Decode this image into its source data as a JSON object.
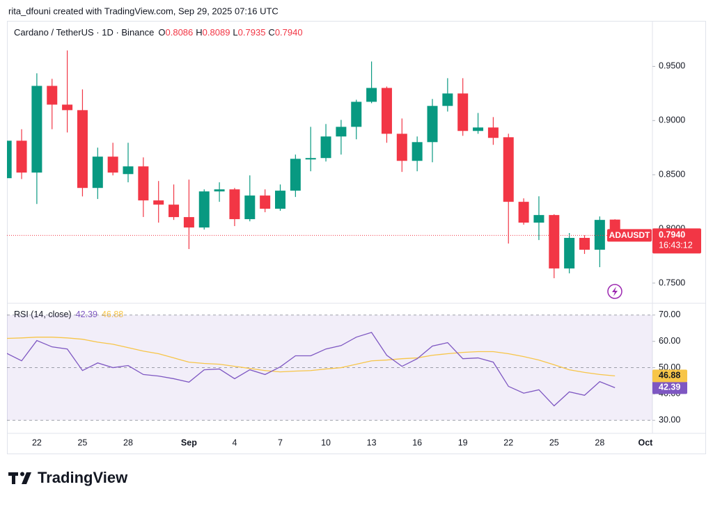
{
  "header": {
    "credit": "rita_dfouni created with TradingView.com, Sep 29, 2025 07:16 UTC",
    "symbol": "Cardano / TetherUS · 1D · Binance",
    "ohlc_keys": [
      "O",
      "H",
      "L",
      "C"
    ],
    "ohlc_labels": [
      "0.8086",
      "0.8089",
      "0.7935",
      "0.7940"
    ]
  },
  "chart_data": [
    {
      "type": "candlestick",
      "categories": [
        null,
        null,
        "22",
        null,
        null,
        "25",
        null,
        null,
        "28",
        null,
        null,
        null,
        "Sep",
        null,
        null,
        "4",
        null,
        null,
        "7",
        null,
        null,
        "10",
        null,
        null,
        "13",
        null,
        null,
        "16",
        null,
        null,
        "19",
        null,
        null,
        "22",
        null,
        null,
        "25",
        null,
        null,
        "28",
        null,
        null,
        "Oct"
      ],
      "open": [
        0.8468,
        0.8814,
        0.852,
        0.932,
        0.9147,
        0.9096,
        0.8378,
        0.8667,
        0.8506,
        0.8577,
        0.8263,
        0.8224,
        0.8109,
        0.8013,
        0.8346,
        0.8365,
        0.809,
        0.8308,
        0.8186,
        0.8353,
        0.8641,
        0.8654,
        0.8853,
        0.8942,
        0.9173,
        0.9301,
        0.8878,
        0.8628,
        0.8801,
        0.9135,
        0.925,
        0.8904,
        0.8936,
        0.8846,
        0.825,
        0.8058,
        0.8128,
        0.7635,
        0.7917,
        0.7808,
        0.8086,
        null,
        null
      ],
      "high": [
        0.885,
        0.892,
        0.9436,
        0.9385,
        0.9647,
        0.9288,
        0.875,
        0.8795,
        0.8795,
        0.866,
        0.8442,
        0.841,
        0.8455,
        0.8365,
        0.843,
        0.8378,
        0.8494,
        0.8365,
        0.841,
        0.8686,
        0.8942,
        0.8968,
        0.9006,
        0.9192,
        0.9545,
        0.9314,
        0.9019,
        0.8853,
        0.9199,
        0.9391,
        0.9391,
        0.907,
        0.9032,
        0.8878,
        0.8282,
        0.8301,
        0.8135,
        0.7962,
        0.7942,
        0.8115,
        0.8089,
        null,
        null
      ],
      "low": [
        0.845,
        0.846,
        0.823,
        0.892,
        0.889,
        0.83,
        0.8276,
        0.8494,
        0.843,
        0.811,
        0.8058,
        0.8083,
        0.7814,
        0.7994,
        0.825,
        0.8026,
        0.807,
        0.8154,
        0.8167,
        0.8295,
        0.8532,
        0.8622,
        0.8686,
        0.8827,
        0.916,
        0.8795,
        0.8526,
        0.8532,
        0.8615,
        0.9083,
        0.8859,
        0.8878,
        0.8776,
        0.7865,
        0.8039,
        0.7897,
        0.7545,
        0.759,
        0.7769,
        0.7647,
        0.7935,
        null,
        null
      ],
      "close": [
        0.8814,
        0.852,
        0.932,
        0.9147,
        0.9096,
        0.8378,
        0.8667,
        0.852,
        0.8577,
        0.8263,
        0.8224,
        0.8109,
        0.8013,
        0.8346,
        0.8365,
        0.809,
        0.8308,
        0.8186,
        0.8353,
        0.8647,
        0.8654,
        0.8853,
        0.8942,
        0.9173,
        0.9301,
        0.8878,
        0.8628,
        0.8801,
        0.9135,
        0.925,
        0.8904,
        0.8936,
        0.884,
        0.825,
        0.8058,
        0.8128,
        0.7635,
        0.7917,
        0.7808,
        0.8083,
        0.794,
        null,
        null
      ],
      "up_color": "#089981",
      "down_color": "#f23645",
      "ylim": [
        0.732,
        0.992
      ],
      "yticks": [
        {
          "value": 0.75,
          "label": "0.7500"
        },
        {
          "value": 0.8,
          "label": "0.8000"
        },
        {
          "value": 0.85,
          "label": "0.8500"
        },
        {
          "value": 0.9,
          "label": "0.9000"
        },
        {
          "value": 0.95,
          "label": "0.9500"
        }
      ],
      "last_price": 0.794,
      "symbol_tag": "ADAUSDT",
      "countdown": "16:43:12"
    },
    {
      "type": "line",
      "title": "RSI (14, close)",
      "series": [
        {
          "color": "#7e57c2",
          "values": [
            55.5,
            52.6,
            60.3,
            57.9,
            57.1,
            48.9,
            51.8,
            50.0,
            50.8,
            47.4,
            46.8,
            45.8,
            44.5,
            49.2,
            49.5,
            45.8,
            49.2,
            47.4,
            50.3,
            54.5,
            54.5,
            57.1,
            58.4,
            61.6,
            63.4,
            54.7,
            50.5,
            53.4,
            58.2,
            59.5,
            53.4,
            53.7,
            52.1,
            42.9,
            40.3,
            41.6,
            35.5,
            40.8,
            39.5,
            44.7,
            42.39,
            null,
            null
          ]
        },
        {
          "color": "#f7c548",
          "values": [
            61.1,
            61.3,
            61.6,
            61.6,
            61.3,
            60.8,
            59.7,
            58.9,
            57.6,
            56.3,
            55.3,
            53.7,
            52.1,
            51.6,
            51.3,
            50.5,
            49.7,
            48.9,
            48.4,
            48.7,
            48.9,
            49.5,
            50.0,
            51.3,
            52.6,
            52.9,
            53.4,
            53.7,
            54.7,
            55.3,
            55.8,
            56.1,
            56.1,
            55.3,
            54.2,
            52.9,
            51.1,
            49.2,
            48.2,
            47.4,
            46.88,
            null,
            null
          ]
        }
      ],
      "ylim": [
        25.3,
        74.2
      ],
      "yticks": [
        {
          "value": 30,
          "label": "30.00"
        },
        {
          "value": 40,
          "label": "40.00"
        },
        {
          "value": 50,
          "label": "50.00"
        },
        {
          "value": 60,
          "label": "60.00"
        },
        {
          "value": 70,
          "label": "70.00"
        }
      ],
      "hlines": [
        70,
        50,
        30
      ],
      "band_color": "#7e57c2"
    }
  ],
  "footer": {
    "brand": "TradingView"
  }
}
